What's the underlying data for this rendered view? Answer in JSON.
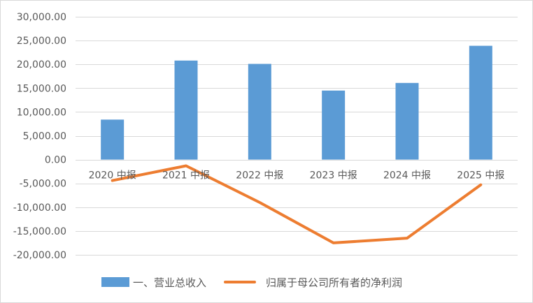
{
  "chart_data": {
    "type": "bar",
    "categories": [
      "2020 中报",
      "2021 中报",
      "2022 中报",
      "2023 中报",
      "2024 中报",
      "2025 中报"
    ],
    "series": [
      {
        "name": "一、营业总收入",
        "kind": "bar",
        "color": "#5B9BD5",
        "values": [
          8400,
          20800,
          20100,
          14500,
          16100,
          23900
        ]
      },
      {
        "name": "归属于母公司所有者的净利润",
        "kind": "line",
        "color": "#ED7D31",
        "values": [
          -4400,
          -1300,
          -9000,
          -17500,
          -16500,
          -5300
        ]
      }
    ],
    "ylim": [
      -20000,
      30000
    ],
    "yticks": [
      30000,
      25000,
      20000,
      15000,
      10000,
      5000,
      0,
      -5000,
      -10000,
      -15000,
      -20000
    ],
    "ytick_labels": [
      "30,000.00",
      "25,000.00",
      "20,000.00",
      "15,000.00",
      "10,000.00",
      "5,000.00",
      "0.00",
      "-5,000.00",
      "-10,000.00",
      "-15,000.00",
      "-20,000.00"
    ],
    "grid": true,
    "legend_position": "bottom"
  }
}
